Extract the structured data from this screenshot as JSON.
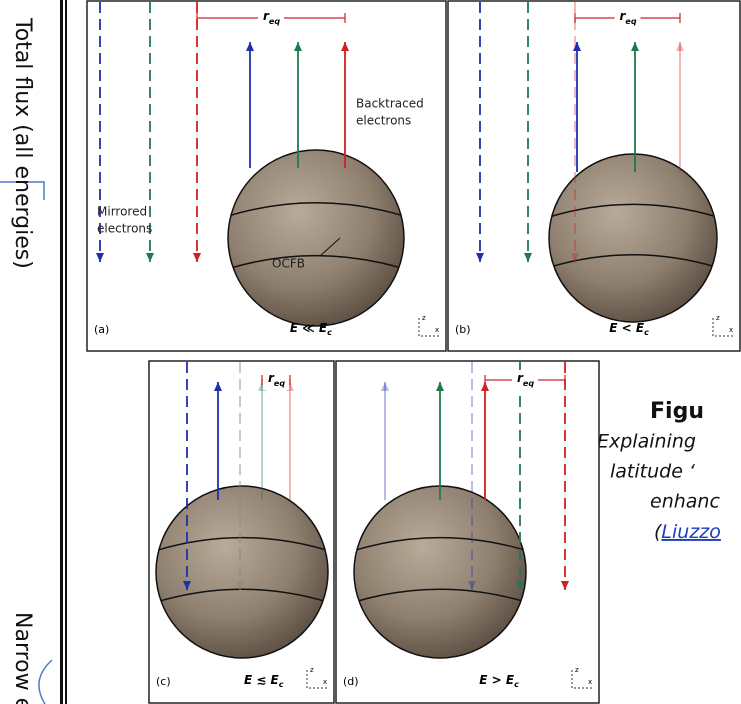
{
  "side_labels": [
    "Total flux (all energies)",
    "Narrow e"
  ],
  "panels": [
    {
      "label": "(a)",
      "condition": "E ≪ E",
      "condition_sub": "c",
      "r_label": "r",
      "r_sub": "eq"
    },
    {
      "label": "(b)",
      "condition": "E < E",
      "condition_sub": "c",
      "r_label": "r",
      "r_sub": "eq"
    },
    {
      "label": "(c)",
      "condition": "E ≲ E",
      "condition_sub": "c",
      "r_label": "r",
      "r_sub": "eq"
    },
    {
      "label": "(d)",
      "condition": "E > E",
      "condition_sub": "c",
      "r_label": "r",
      "r_sub": "eq"
    }
  ],
  "annotations": {
    "backtraced": [
      "Backtraced",
      "electrons"
    ],
    "mirrored": [
      "Mirrored",
      "electrons"
    ],
    "ocfb": "OCFB"
  },
  "axis_icon": {
    "z": "z",
    "x": "x"
  },
  "caption": {
    "title": "Figu",
    "lines": [
      "Explaining",
      "latitude ‘",
      "enhanc"
    ],
    "link": "Liuzzo",
    "link_prefix": "("
  }
}
